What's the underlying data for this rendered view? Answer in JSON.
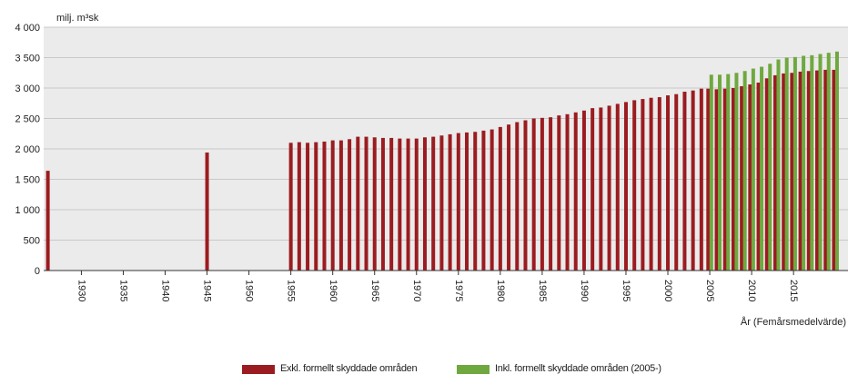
{
  "chart_data": {
    "type": "bar",
    "ylabel": "milj. m³sk",
    "xlabel": "År (Femårsmedelvärde)",
    "ylim": [
      0,
      4000
    ],
    "xlim": [
      1925.5,
      2021.5
    ],
    "yticks": [
      "0",
      "500",
      "1 000",
      "1 500",
      "2 000",
      "2 500",
      "3 000",
      "3 500",
      "4 000"
    ],
    "ytick_values": [
      0,
      500,
      1000,
      1500,
      2000,
      2500,
      3000,
      3500,
      4000
    ],
    "xticks": [
      "1930",
      "1935",
      "1940",
      "1945",
      "1950",
      "1955",
      "1960",
      "1965",
      "1970",
      "1975",
      "1980",
      "1985",
      "1990",
      "1995",
      "2000",
      "2005",
      "2010",
      "2015"
    ],
    "xtick_values": [
      1930,
      1935,
      1940,
      1945,
      1950,
      1955,
      1960,
      1965,
      1970,
      1975,
      1980,
      1985,
      1990,
      1995,
      2000,
      2005,
      2010,
      2015
    ],
    "grid": true,
    "legend_position": "bottom-center",
    "series": [
      {
        "name": "Exkl. formellt skyddade områden",
        "color": "#9b1c20",
        "points": [
          [
            1926,
            1640
          ],
          [
            1945,
            1940
          ],
          [
            1955,
            2100
          ],
          [
            1956,
            2110
          ],
          [
            1957,
            2100
          ],
          [
            1958,
            2110
          ],
          [
            1959,
            2120
          ],
          [
            1960,
            2140
          ],
          [
            1961,
            2140
          ],
          [
            1962,
            2160
          ],
          [
            1963,
            2200
          ],
          [
            1964,
            2200
          ],
          [
            1965,
            2190
          ],
          [
            1966,
            2180
          ],
          [
            1967,
            2180
          ],
          [
            1968,
            2170
          ],
          [
            1969,
            2170
          ],
          [
            1970,
            2170
          ],
          [
            1971,
            2190
          ],
          [
            1972,
            2200
          ],
          [
            1973,
            2220
          ],
          [
            1974,
            2240
          ],
          [
            1975,
            2260
          ],
          [
            1976,
            2270
          ],
          [
            1977,
            2280
          ],
          [
            1978,
            2300
          ],
          [
            1979,
            2320
          ],
          [
            1980,
            2360
          ],
          [
            1981,
            2400
          ],
          [
            1982,
            2440
          ],
          [
            1983,
            2470
          ],
          [
            1984,
            2500
          ],
          [
            1985,
            2510
          ],
          [
            1986,
            2520
          ],
          [
            1987,
            2550
          ],
          [
            1988,
            2570
          ],
          [
            1989,
            2600
          ],
          [
            1990,
            2630
          ],
          [
            1991,
            2670
          ],
          [
            1992,
            2680
          ],
          [
            1993,
            2710
          ],
          [
            1994,
            2740
          ],
          [
            1995,
            2770
          ],
          [
            1996,
            2800
          ],
          [
            1997,
            2820
          ],
          [
            1998,
            2840
          ],
          [
            1999,
            2850
          ],
          [
            2000,
            2880
          ],
          [
            2001,
            2900
          ],
          [
            2002,
            2940
          ],
          [
            2003,
            2960
          ],
          [
            2004,
            2990
          ],
          [
            2005,
            2990
          ],
          [
            2006,
            2980
          ],
          [
            2007,
            2990
          ],
          [
            2008,
            3000
          ],
          [
            2009,
            3030
          ],
          [
            2010,
            3060
          ],
          [
            2011,
            3090
          ],
          [
            2012,
            3160
          ],
          [
            2013,
            3210
          ],
          [
            2014,
            3240
          ],
          [
            2015,
            3250
          ],
          [
            2016,
            3270
          ],
          [
            2017,
            3280
          ],
          [
            2018,
            3290
          ],
          [
            2019,
            3300
          ],
          [
            2020,
            3300
          ]
        ]
      },
      {
        "name": "Inkl. formellt skyddade områden (2005-)",
        "color": "#6fa83f",
        "points": [
          [
            2005,
            3220
          ],
          [
            2006,
            3220
          ],
          [
            2007,
            3230
          ],
          [
            2008,
            3250
          ],
          [
            2009,
            3280
          ],
          [
            2010,
            3320
          ],
          [
            2011,
            3350
          ],
          [
            2012,
            3400
          ],
          [
            2013,
            3470
          ],
          [
            2014,
            3500
          ],
          [
            2015,
            3510
          ],
          [
            2016,
            3530
          ],
          [
            2017,
            3540
          ],
          [
            2018,
            3560
          ],
          [
            2019,
            3580
          ],
          [
            2020,
            3600
          ]
        ]
      }
    ]
  }
}
